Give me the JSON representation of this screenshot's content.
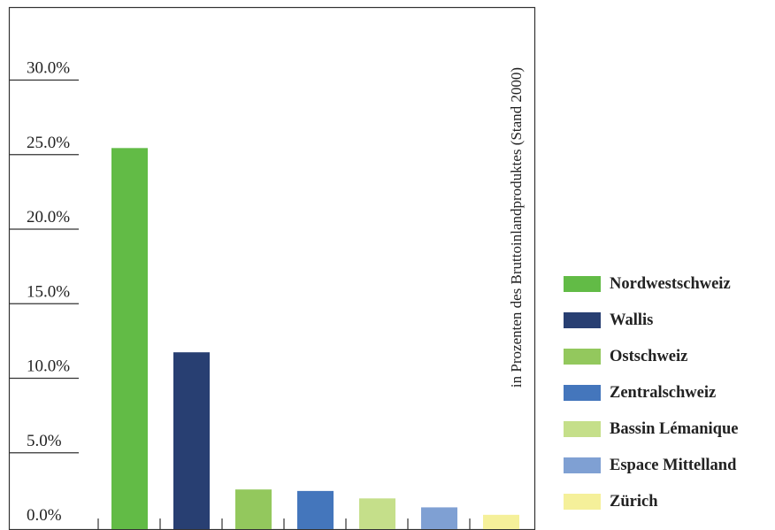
{
  "chart_data": {
    "type": "bar",
    "categories": [
      "Nordwestschweiz",
      "Wallis",
      "Ostschweiz",
      "Zentralschweiz",
      "Bassin Lémanique",
      "Espace Mittelland",
      "Zürich"
    ],
    "values": [
      25.5,
      11.8,
      2.6,
      2.5,
      2.0,
      1.4,
      0.9
    ],
    "colors": [
      "#62bb46",
      "#283f72",
      "#93c85d",
      "#4476bc",
      "#c5df8a",
      "#7fa0d3",
      "#f5f09a"
    ],
    "ylabel": "in Prozenten des Bruttoinlandproduktes (Stand 2000)",
    "yticks": [
      "0.0%",
      "5.0%",
      "10.0%",
      "15.0%",
      "20.0%",
      "25.0%",
      "30.0%"
    ],
    "ylim": [
      0,
      35
    ],
    "grid": false,
    "legend_position": "right"
  }
}
